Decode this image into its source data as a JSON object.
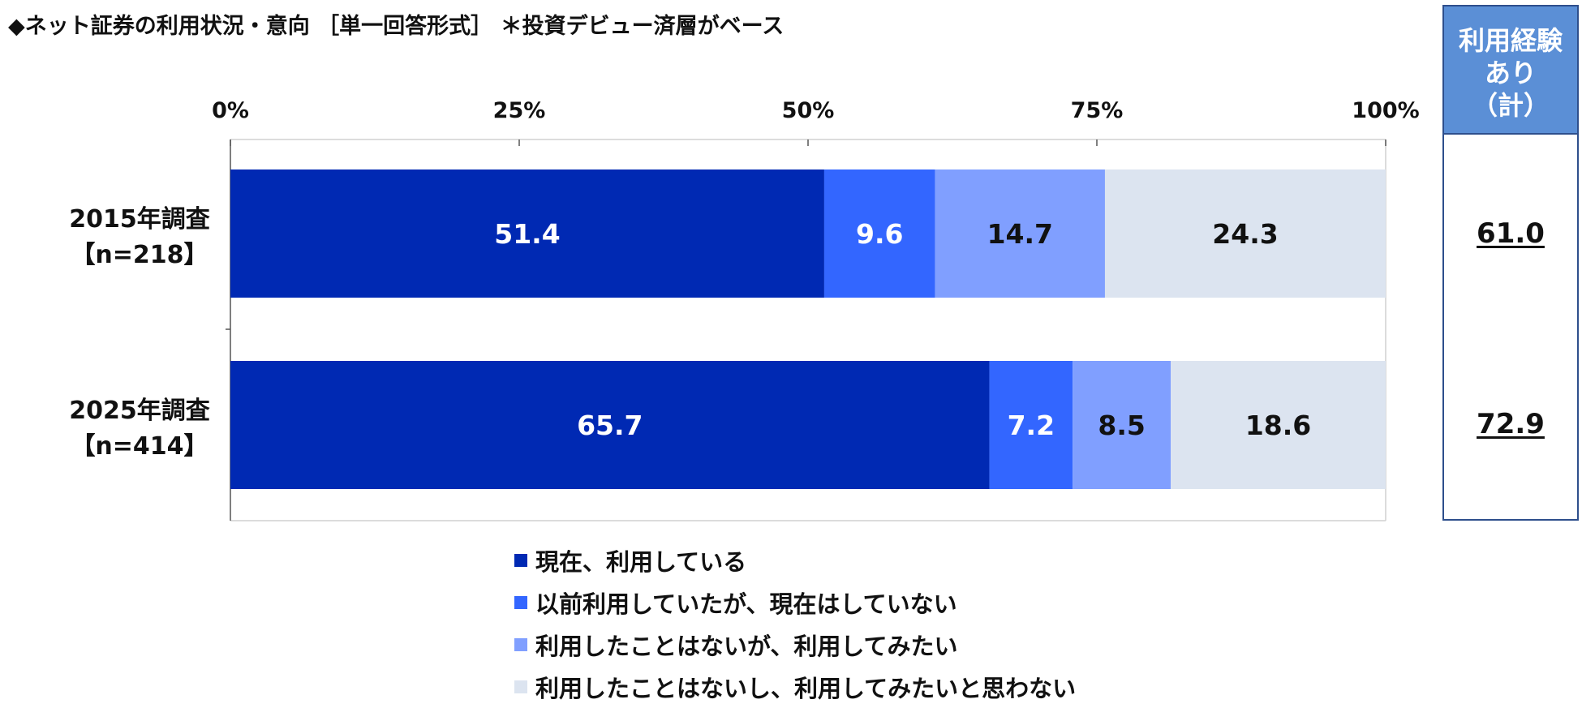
{
  "title": "◆ネット証券の利用状況・意向 ［単一回答形式］ ＊投資デビュー済層がベース",
  "side_panel": {
    "header_lines": [
      "利用経験",
      "あり",
      "（計）"
    ],
    "values": [
      "61.0",
      "72.9"
    ]
  },
  "chart_data": {
    "type": "bar",
    "orientation": "horizontal",
    "stacked": true,
    "categories": [
      "2015年調査\n【n=218】",
      "2025年調査\n【n=414】"
    ],
    "category_lines": [
      [
        "2015年調査",
        "【n=218】"
      ],
      [
        "2025年調査",
        "【n=414】"
      ]
    ],
    "x_ticks": [
      "0%",
      "25%",
      "50%",
      "75%",
      "100%"
    ],
    "xlim": [
      0,
      100
    ],
    "series": [
      {
        "name": "現在、利用している",
        "values": [
          51.4,
          65.7
        ],
        "color": "#0029b3",
        "label_color": "#ffffff"
      },
      {
        "name": "以前利用していたが、現在はしていない",
        "values": [
          9.6,
          7.2
        ],
        "color": "#3366ff",
        "label_color": "#ffffff"
      },
      {
        "name": "利用したことはないが、利用してみたい",
        "values": [
          14.7,
          8.5
        ],
        "color": "#809fff",
        "label_color": "#111111"
      },
      {
        "name": "利用したことはないし、利用してみたいと思わない",
        "values": [
          24.3,
          18.6
        ],
        "color": "#dce4f0",
        "label_color": "#111111"
      }
    ],
    "legend_position": "bottom",
    "grid": false
  }
}
